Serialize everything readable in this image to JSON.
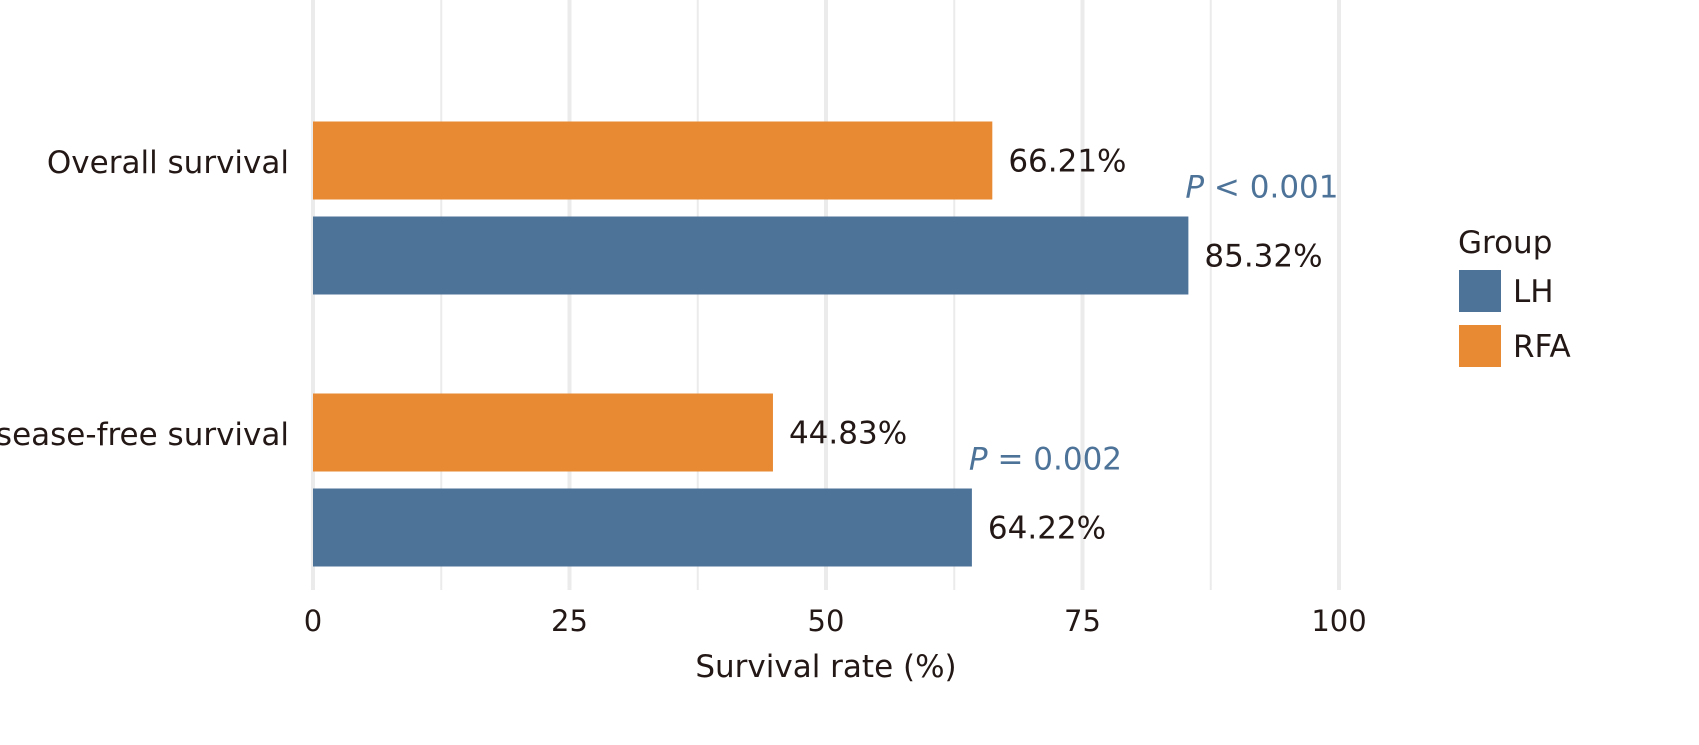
{
  "chart_data": {
    "type": "bar",
    "orientation": "horizontal",
    "categories": [
      "Overall survival",
      "Disease-free survival"
    ],
    "series": [
      {
        "name": "LH",
        "color": "#4d7399",
        "values": [
          85.32,
          64.22
        ],
        "labels": [
          "85.32%",
          "64.22%"
        ]
      },
      {
        "name": "RFA",
        "color": "#e88a33",
        "values": [
          66.21,
          44.83
        ],
        "labels": [
          "66.21%",
          "44.83%"
        ]
      }
    ],
    "annotations": [
      {
        "category": "Overall survival",
        "italic": "P",
        "text": " < 0.001",
        "x": 85.32
      },
      {
        "category": "Disease-free survival",
        "italic": "P",
        "text": " = 0.002",
        "x": 64.22
      }
    ],
    "xlabel": "Survival rate (%)",
    "ylabel": "",
    "xlim": [
      0,
      100
    ],
    "xticks": [
      0,
      25,
      50,
      75,
      100
    ],
    "grid": true,
    "legend": {
      "title": "Group",
      "position": "right",
      "entries": [
        "LH",
        "RFA"
      ]
    },
    "annotation_color": "#4d7399"
  }
}
